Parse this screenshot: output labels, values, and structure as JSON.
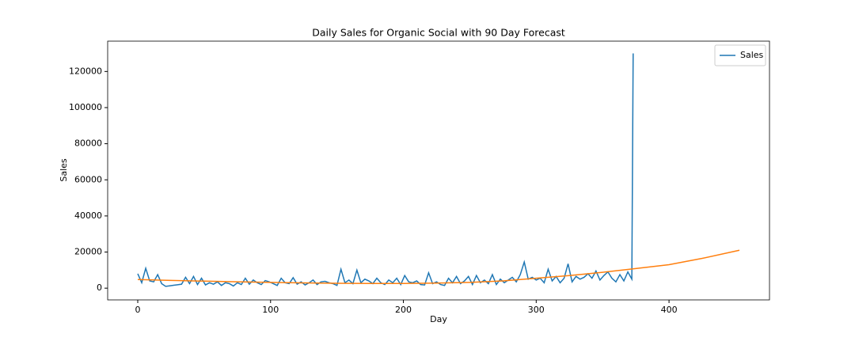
{
  "chart_data": {
    "type": "line",
    "title": "Daily Sales for Organic Social with 90 Day Forecast",
    "xlabel": "Day",
    "ylabel": "Sales",
    "xlim": [
      -22.65,
      475.65
    ],
    "ylim": [
      -6500,
      136800
    ],
    "xticks": [
      0,
      100,
      200,
      300,
      400
    ],
    "yticks": [
      0,
      20000,
      40000,
      60000,
      80000,
      100000,
      120000
    ],
    "legend": "upper right",
    "series": [
      {
        "name": "Sales",
        "color": "#1f77b4",
        "x": [
          0,
          3,
          6,
          9,
          12,
          15,
          18,
          21,
          24,
          27,
          30,
          33,
          36,
          39,
          42,
          45,
          48,
          51,
          54,
          57,
          60,
          63,
          66,
          69,
          72,
          75,
          78,
          81,
          84,
          87,
          90,
          93,
          96,
          99,
          102,
          105,
          108,
          111,
          114,
          117,
          120,
          123,
          126,
          129,
          132,
          135,
          138,
          141,
          144,
          147,
          150,
          153,
          156,
          159,
          162,
          165,
          168,
          171,
          174,
          177,
          180,
          183,
          186,
          189,
          192,
          195,
          198,
          201,
          204,
          207,
          210,
          213,
          216,
          219,
          222,
          225,
          228,
          231,
          234,
          237,
          240,
          243,
          246,
          249,
          252,
          255,
          258,
          261,
          264,
          267,
          270,
          273,
          276,
          279,
          282,
          285,
          288,
          291,
          294,
          297,
          300,
          303,
          306,
          309,
          312,
          315,
          318,
          321,
          324,
          327,
          330,
          333,
          336,
          339,
          342,
          345,
          348,
          351,
          354,
          357,
          360,
          363,
          366,
          369,
          372,
          373
        ],
        "values": [
          8000,
          3000,
          11000,
          4000,
          3500,
          7500,
          2500,
          1000,
          1300,
          1600,
          1900,
          2200,
          6000,
          2500,
          6500,
          2000,
          5500,
          1800,
          3000,
          2200,
          3500,
          1500,
          3000,
          2500,
          1200,
          3000,
          2000,
          5500,
          2200,
          4500,
          3000,
          2000,
          4200,
          3500,
          2500,
          1500,
          5500,
          3000,
          2500,
          5800,
          2200,
          3500,
          1800,
          3000,
          4500,
          2000,
          3500,
          3800,
          3000,
          2500,
          1500,
          10500,
          3000,
          4500,
          2500,
          10000,
          3000,
          5000,
          4000,
          2500,
          5500,
          3000,
          2000,
          4500,
          3000,
          5500,
          2000,
          7000,
          3500,
          3000,
          4000,
          2000,
          1800,
          8500,
          2500,
          3500,
          2000,
          1500,
          5500,
          3000,
          6500,
          2500,
          4000,
          6500,
          2000,
          7000,
          3000,
          4500,
          2500,
          7500,
          2000,
          5000,
          3000,
          4500,
          6000,
          3500,
          7500,
          14500,
          5000,
          6000,
          4500,
          5500,
          3000,
          10500,
          4000,
          6500,
          3000,
          5500,
          13500,
          3500,
          6500,
          5000,
          6000,
          8000,
          5500,
          9500,
          4500,
          7000,
          9000,
          5500,
          3500,
          7500,
          4000,
          9000,
          5000,
          130000
        ]
      },
      {
        "color": "#ff7f0e",
        "x": [
          0,
          25,
          50,
          75,
          100,
          125,
          150,
          175,
          200,
          225,
          250,
          275,
          300,
          325,
          350,
          373,
          400,
          425,
          453
        ],
        "values": [
          4800,
          4300,
          3900,
          3500,
          3200,
          2900,
          2700,
          2600,
          2600,
          2800,
          3200,
          4000,
          5500,
          7000,
          8800,
          10700,
          13000,
          16500,
          21000
        ]
      }
    ]
  }
}
